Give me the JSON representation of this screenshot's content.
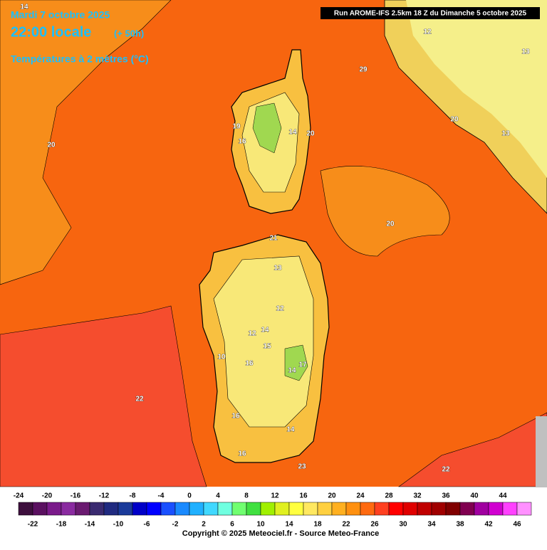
{
  "header": {
    "date": "Mardi 7 octobre 2025",
    "time": "22:00 locale",
    "lead": "(+ 50h)",
    "parameter": "Températures à 2 mètres (°C)",
    "run": "Run AROME-IFS 2.5km 18 Z du Dimanche 5 octobre 2025"
  },
  "contour_labels": [
    14,
    20,
    20,
    22,
    22,
    23,
    21,
    20,
    29,
    12,
    13,
    20,
    13,
    13,
    12,
    16,
    10,
    16,
    16,
    14,
    12,
    14,
    15,
    14,
    17,
    16,
    14,
    19
  ],
  "legend": {
    "levels": [
      -24,
      -22,
      -20,
      -18,
      -16,
      -14,
      -12,
      -10,
      -8,
      -6,
      -4,
      -2,
      0,
      2,
      4,
      6,
      8,
      10,
      12,
      14,
      16,
      18,
      20,
      22,
      24,
      26,
      28,
      30,
      32,
      34,
      36,
      38,
      40,
      42,
      44,
      46
    ],
    "colors": [
      "#3d0f3d",
      "#5a1060",
      "#7a1a8a",
      "#8a2aa0",
      "#6a1a70",
      "#3a2a70",
      "#202a80",
      "#1a3a9a",
      "#0000c8",
      "#0000ff",
      "#1a50ff",
      "#1a8aff",
      "#20b0ff",
      "#40d8ff",
      "#70ffe0",
      "#70ff70",
      "#40e040",
      "#a0f000",
      "#e0f020",
      "#ffff40",
      "#ffe860",
      "#ffd040",
      "#ffb020",
      "#ff9010",
      "#ff6a10",
      "#ff4020",
      "#ff0000",
      "#e00000",
      "#c00000",
      "#a00000",
      "#800000",
      "#800050",
      "#a000a0",
      "#d000d0",
      "#ff40ff",
      "#ff90ff"
    ]
  },
  "footer": {
    "copyright": "Copyright © 2025 Meteociel.fr - Source Meteo-France"
  }
}
